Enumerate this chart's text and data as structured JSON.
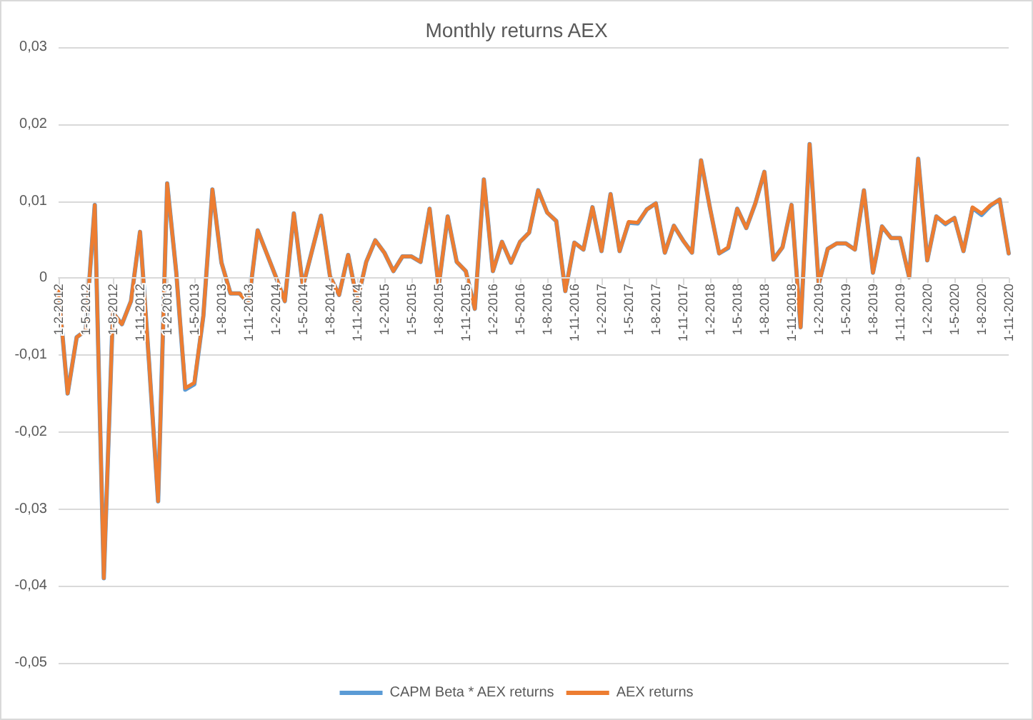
{
  "chart_data": {
    "type": "line",
    "title": "Monthly returns AEX",
    "categories": [
      "1-2-2012",
      null,
      null,
      "1-5-2012",
      null,
      null,
      "1-8-2012",
      null,
      null,
      "1-11-2012",
      null,
      null,
      "1-2-2013",
      null,
      null,
      "1-5-2013",
      null,
      null,
      "1-8-2013",
      null,
      null,
      "1-11-2013",
      null,
      null,
      "1-2-2014",
      null,
      null,
      "1-5-2014",
      null,
      null,
      "1-8-2014",
      null,
      null,
      "1-11-2014",
      null,
      null,
      "1-2-2015",
      null,
      null,
      "1-5-2015",
      null,
      null,
      "1-8-2015",
      null,
      null,
      "1-11-2015",
      null,
      null,
      "1-2-2016",
      null,
      null,
      "1-5-2016",
      null,
      null,
      "1-8-2016",
      null,
      null,
      "1-11-2016",
      null,
      null,
      "1-2-2017",
      null,
      null,
      "1-5-2017",
      null,
      null,
      "1-8-2017",
      null,
      null,
      "1-11-2017",
      null,
      null,
      "1-2-2018",
      null,
      null,
      "1-5-2018",
      null,
      null,
      "1-8-2018",
      null,
      null,
      "1-11-2018",
      null,
      null,
      "1-2-2019",
      null,
      null,
      "1-5-2019",
      null,
      null,
      "1-8-2019",
      null,
      null,
      "1-11-2019",
      null,
      null,
      "1-2-2020",
      null,
      null,
      "1-5-2020",
      null,
      null,
      "1-8-2020",
      null,
      null,
      "1-11-2020"
    ],
    "series": [
      {
        "name": "CAPM Beta * AEX returns",
        "color": "#5b9bd5",
        "values": [
          -0.0017,
          -0.015,
          -0.0077,
          -0.0068,
          0.0095,
          -0.039,
          -0.0045,
          -0.006,
          -0.003,
          0.006,
          -0.011,
          -0.029,
          0.0123,
          0.0008,
          -0.0145,
          -0.0138,
          -0.0049,
          0.0115,
          0.002,
          -0.002,
          -0.002,
          -0.0033,
          0.0062,
          0.0032,
          0.0002,
          -0.003,
          0.0084,
          -0.0011,
          0.0035,
          0.0081,
          0.0002,
          -0.0022,
          0.003,
          -0.003,
          0.0021,
          0.0049,
          0.0033,
          0.0009,
          0.0028,
          0.0028,
          0.0021,
          0.009,
          -0.0011,
          0.008,
          0.0021,
          0.0009,
          -0.004,
          0.0128,
          0.0009,
          0.0047,
          0.002,
          0.0047,
          0.0059,
          0.0114,
          0.0085,
          0.0074,
          -0.0017,
          0.0046,
          0.0037,
          0.0092,
          0.0035,
          0.0109,
          0.0035,
          0.0072,
          0.0071,
          0.0089,
          0.0097,
          0.0033,
          0.0068,
          0.0049,
          0.0033,
          0.0153,
          0.009,
          0.0032,
          0.0039,
          0.009,
          0.0065,
          0.0097,
          0.0138,
          0.0024,
          0.004,
          0.0095,
          -0.0064,
          0.0174,
          -0.0008,
          0.0038,
          0.0045,
          0.0045,
          0.0037,
          0.0114,
          0.0007,
          0.0067,
          0.0052,
          0.0052,
          0.0001,
          0.0155,
          0.0023,
          0.008,
          0.007,
          0.0078,
          0.0035,
          0.0091,
          0.0082,
          0.0094,
          0.0102,
          0.0032
        ]
      },
      {
        "name": "AEX returns",
        "color": "#ed7d31",
        "values": [
          -0.0017,
          -0.015,
          -0.0077,
          -0.0068,
          0.0095,
          -0.039,
          -0.0045,
          -0.006,
          -0.003,
          0.006,
          -0.011,
          -0.029,
          0.0123,
          0.0008,
          -0.0143,
          -0.0136,
          -0.0049,
          0.0115,
          0.002,
          -0.002,
          -0.002,
          -0.0033,
          0.0062,
          0.0032,
          0.0002,
          -0.003,
          0.0084,
          -0.0011,
          0.0035,
          0.0081,
          0.0002,
          -0.0022,
          0.003,
          -0.003,
          0.0021,
          0.0049,
          0.0033,
          0.0009,
          0.0028,
          0.0028,
          0.0021,
          0.009,
          -0.0011,
          0.008,
          0.0021,
          0.0009,
          -0.004,
          0.0128,
          0.0009,
          0.0047,
          0.002,
          0.0047,
          0.0059,
          0.0114,
          0.0085,
          0.0074,
          -0.0017,
          0.0046,
          0.0037,
          0.0092,
          0.0035,
          0.0109,
          0.0035,
          0.0073,
          0.0072,
          0.0089,
          0.0097,
          0.0033,
          0.0068,
          0.0049,
          0.0033,
          0.0153,
          0.009,
          0.0032,
          0.004,
          0.009,
          0.0065,
          0.0097,
          0.0138,
          0.0024,
          0.004,
          0.0095,
          -0.0064,
          0.0174,
          -0.0008,
          0.0038,
          0.0045,
          0.0045,
          0.0037,
          0.0114,
          0.0007,
          0.0067,
          0.0052,
          0.0052,
          0.0001,
          0.0155,
          0.0023,
          0.008,
          0.0071,
          0.0078,
          0.0035,
          0.0092,
          0.0084,
          0.0095,
          0.0102,
          0.0032
        ]
      }
    ],
    "ylim": [
      -0.05,
      0.03
    ],
    "yticks": [
      {
        "value": -0.05,
        "label": "-0,05"
      },
      {
        "value": -0.04,
        "label": "-0,04"
      },
      {
        "value": -0.03,
        "label": "-0,03"
      },
      {
        "value": -0.02,
        "label": "-0,02"
      },
      {
        "value": -0.01,
        "label": "-0,01"
      },
      0,
      {
        "value": 0.01,
        "label": "0,01"
      },
      {
        "value": 0.02,
        "label": "0,02"
      },
      {
        "value": 0.03,
        "label": "0,03"
      }
    ],
    "grid": "y",
    "legend": "bottom",
    "marker": "none",
    "line_style": "solid"
  }
}
